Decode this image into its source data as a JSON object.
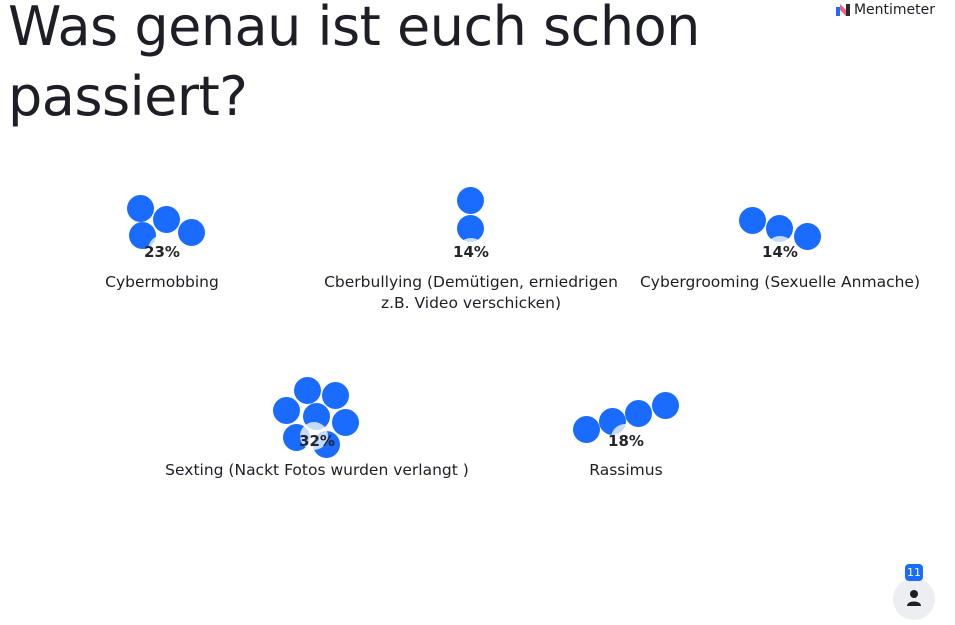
{
  "question": {
    "title": "Was genau ist euch schon passiert?"
  },
  "brand": {
    "name": "Mentimeter",
    "logo_icon": "mentimeter-logo-icon",
    "colors": [
      "#ff5b7f",
      "#196cff",
      "#2b2b2b"
    ]
  },
  "accent_color": "#196cff",
  "options": [
    {
      "id": "cybermobbing",
      "label": "Cybermobbing",
      "percent_label": "23%",
      "percent": 23
    },
    {
      "id": "cberbullying",
      "label": "Cberbullying (Demütigen, erniedrigen z.B. Video verschicken)",
      "percent_label": "14%",
      "percent": 14
    },
    {
      "id": "cybergrooming",
      "label": "Cybergrooming (Sexuelle Anmache)",
      "percent_label": "14%",
      "percent": 14
    },
    {
      "id": "sexting",
      "label": "Sexting (Nackt Fotos wurden verlangt )",
      "percent_label": "32%",
      "percent": 32
    },
    {
      "id": "rassimus",
      "label": "Rassimus",
      "percent_label": "18%",
      "percent": 18
    }
  ],
  "participants": {
    "count": "11",
    "icon": "person-icon"
  }
}
